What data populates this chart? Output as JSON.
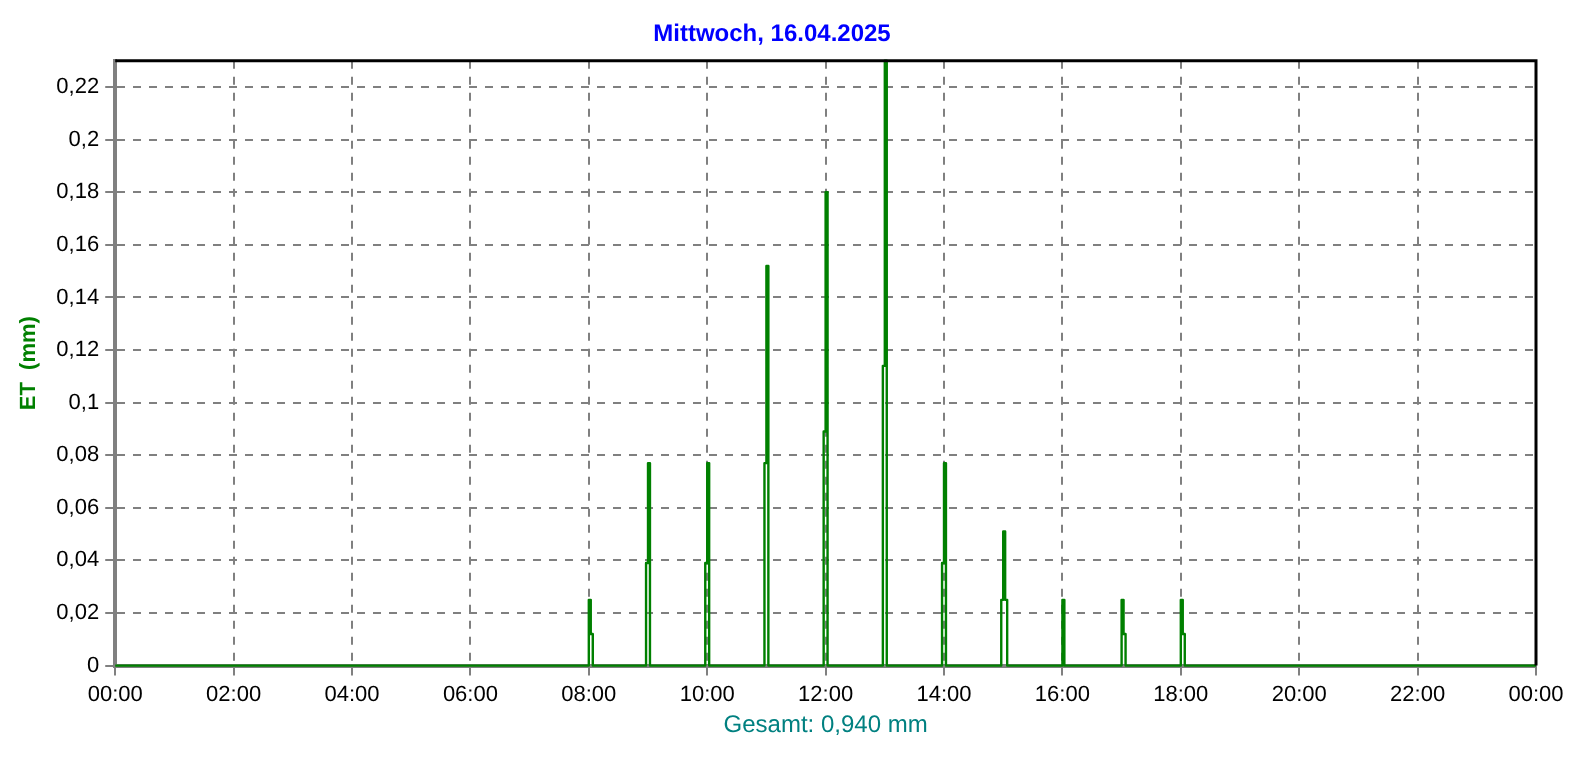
{
  "chart_data": {
    "type": "step",
    "title": "Mittwoch, 16.04.2025",
    "ylabel": "ET  (mm)",
    "annotations": [
      "Gesamt: 0,940 mm"
    ],
    "x": [
      0,
      8,
      8.033,
      8.067,
      8.967,
      9,
      9.033,
      9.967,
      10,
      10.033,
      10.967,
      11,
      11.033,
      11.967,
      12,
      12.033,
      12.967,
      13,
      13.033,
      13.967,
      14,
      14.033,
      14.967,
      15,
      15.033,
      15.067,
      16,
      16.033,
      17,
      17.033,
      17.067,
      18,
      18.033,
      18.067,
      24
    ],
    "series": [
      {
        "color": "#008000",
        "values": [
          0,
          0.025,
          0.012,
          0,
          0.039,
          0.077,
          0,
          0.039,
          0.077,
          0,
          0.077,
          0.152,
          0,
          0.089,
          0.18,
          0,
          0.114,
          0.23,
          0,
          0.039,
          0.077,
          0,
          0.025,
          0.051,
          0.025,
          0,
          0.025,
          0,
          0.025,
          0.012,
          0,
          0.025,
          0.012,
          0,
          0
        ]
      }
    ],
    "xlim": [
      0,
      24
    ],
    "xticks": [
      {
        "value": 0,
        "label": "00:00"
      },
      {
        "value": 2,
        "label": "02:00"
      },
      {
        "value": 4,
        "label": "04:00"
      },
      {
        "value": 6,
        "label": "06:00"
      },
      {
        "value": 8,
        "label": "08:00"
      },
      {
        "value": 10,
        "label": "10:00"
      },
      {
        "value": 12,
        "label": "12:00"
      },
      {
        "value": 14,
        "label": "14:00"
      },
      {
        "value": 16,
        "label": "16:00"
      },
      {
        "value": 18,
        "label": "18:00"
      },
      {
        "value": 20,
        "label": "20:00"
      },
      {
        "value": 22,
        "label": "22:00"
      },
      {
        "value": 24,
        "label": "00:00"
      }
    ],
    "ylim": [
      0,
      0.23
    ],
    "yticks": [
      0,
      {
        "value": 0.02,
        "label": "0,02"
      },
      {
        "value": 0.04,
        "label": "0,04"
      },
      {
        "value": 0.06,
        "label": "0,06"
      },
      {
        "value": 0.08,
        "label": "0,08"
      },
      {
        "value": 0.1,
        "label": "0,1"
      },
      {
        "value": 0.12,
        "label": "0,12"
      },
      {
        "value": 0.14,
        "label": "0,14"
      },
      {
        "value": 0.16,
        "label": "0,16"
      },
      {
        "value": 0.18,
        "label": "0,18"
      },
      {
        "value": 0.2,
        "label": "0,2"
      },
      {
        "value": 0.22,
        "label": "0,22"
      }
    ],
    "grid": true,
    "legend": false,
    "marker": "none",
    "line_style": "solid"
  }
}
